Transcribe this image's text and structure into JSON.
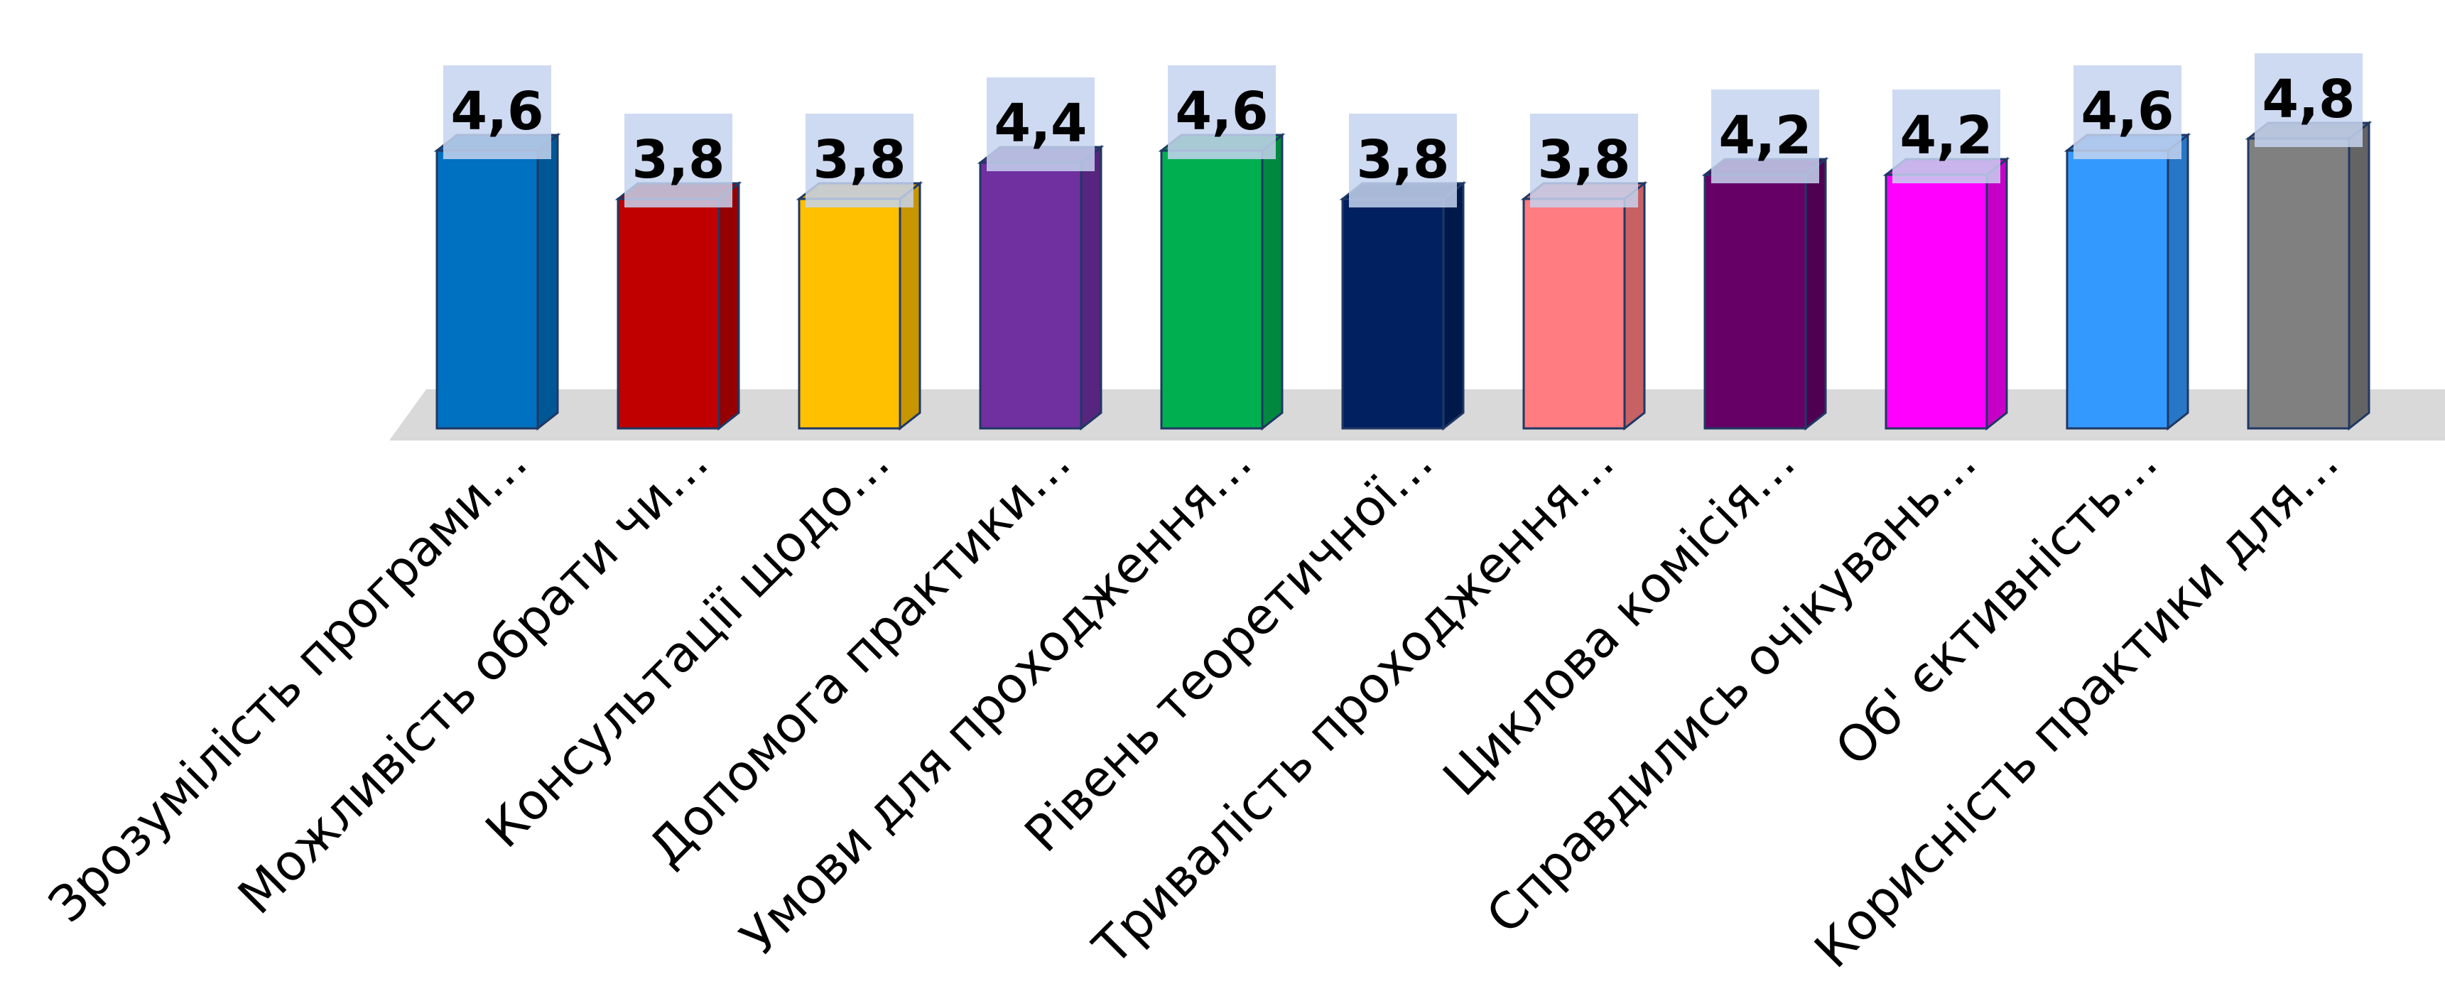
{
  "chart_data": {
    "type": "bar",
    "categories": [
      "Зрозумілість програми…",
      "Можливість обрати чи…",
      "Консультації щодо…",
      "Допомога практики…",
      "Умови для проходження…",
      "Рівень теоретичної…",
      "Тривалість проходження…",
      "Циклова комісія…",
      "Справдились очікувань…",
      "Об' єктивність…",
      "Корисність практики для…"
    ],
    "values": [
      4.6,
      3.8,
      3.8,
      4.4,
      4.6,
      3.8,
      3.8,
      4.2,
      4.2,
      4.6,
      4.8
    ],
    "value_labels": [
      "4,6",
      "3,8",
      "3,8",
      "4,4",
      "4,6",
      "3,8",
      "3,8",
      "4,2",
      "4,2",
      "4,6",
      "4,8"
    ],
    "colors": [
      "#0070C0",
      "#C00000",
      "#FFC000",
      "#7030A0",
      "#00B050",
      "#002060",
      "#FF7C80",
      "#660066",
      "#FF00FF",
      "#3399FF",
      "#808080"
    ],
    "label_box_color": "#C5D3EE",
    "floor_color": "#D9D9D9",
    "style": "3d-column",
    "grid": false,
    "legend": "none",
    "title": "",
    "xlabel": "",
    "ylabel": ""
  }
}
